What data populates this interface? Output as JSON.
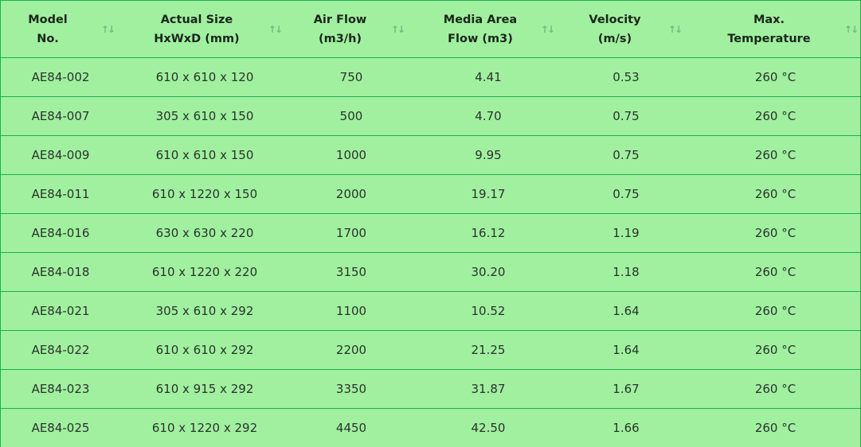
{
  "columns": [
    {
      "label": "Model\nNo.",
      "sort_icon": "sort-arrows-icon"
    },
    {
      "label": "Actual Size\nHxWxD (mm)",
      "sort_icon": "sort-arrows-icon"
    },
    {
      "label": "Air Flow\n(m3/h)",
      "sort_icon": "sort-arrows-icon"
    },
    {
      "label": "Media Area\nFlow (m3)",
      "sort_icon": "sort-arrows-icon"
    },
    {
      "label": "Velocity\n(m/s)",
      "sort_icon": "sort-arrows-icon"
    },
    {
      "label": "Max.\nTemperature",
      "sort_icon": "sort-arrows-icon"
    }
  ],
  "sort_glyph": "↑↓",
  "rows": [
    [
      "AE84-002",
      "610 x 610 x 120",
      "750",
      "4.41",
      "0.53",
      "260 °C"
    ],
    [
      "AE84-007",
      "305 x 610 x 150",
      "500",
      "4.70",
      "0.75",
      "260 °C"
    ],
    [
      "AE84-009",
      "610 x 610 x 150",
      "1000",
      "9.95",
      "0.75",
      "260 °C"
    ],
    [
      "AE84-011",
      "610 x 1220 x 150",
      "2000",
      "19.17",
      "0.75",
      "260 °C"
    ],
    [
      "AE84-016",
      "630 x 630 x 220",
      "1700",
      "16.12",
      "1.19",
      "260 °C"
    ],
    [
      "AE84-018",
      "610 x 1220 x 220",
      "3150",
      "30.20",
      "1.18",
      "260 °C"
    ],
    [
      "AE84-021",
      "305 x 610 x 292",
      "1100",
      "10.52",
      "1.64",
      "260 °C"
    ],
    [
      "AE84-022",
      "610 x 610 x 292",
      "2200",
      "21.25",
      "1.64",
      "260 °C"
    ],
    [
      "AE84-023",
      "610 x 915 x 292",
      "3350",
      "31.87",
      "1.67",
      "260 °C"
    ],
    [
      "AE84-025",
      "610 x 1220 x 292",
      "4450",
      "42.50",
      "1.66",
      "260 °C"
    ]
  ],
  "colors": {
    "background": "#a0f0a0",
    "border": "#1bb04a",
    "sort_icon": "#6cbf7c"
  }
}
